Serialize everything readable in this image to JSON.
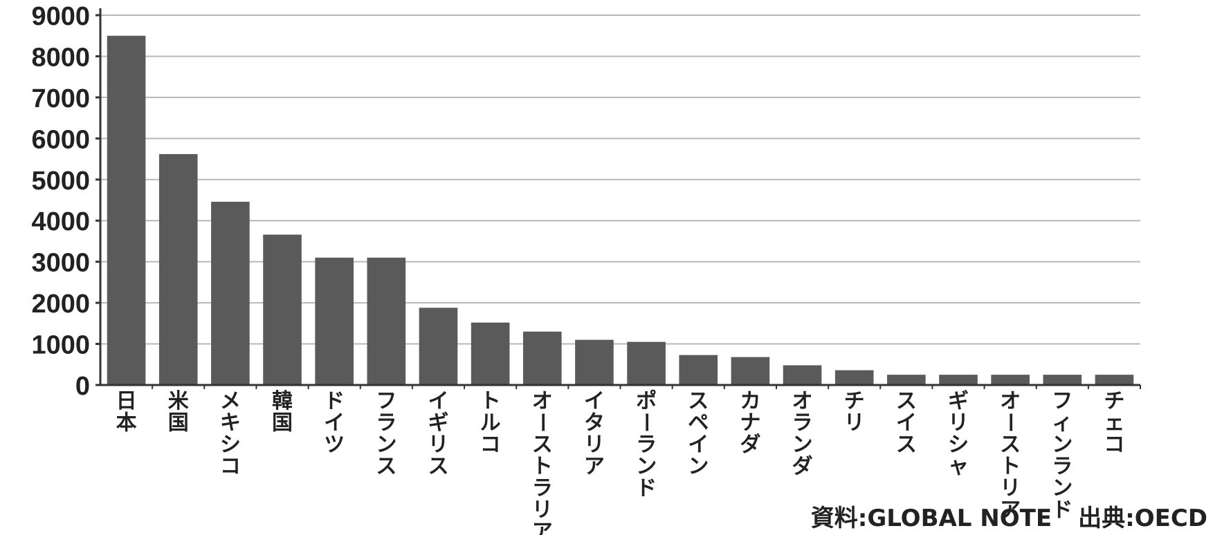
{
  "source": {
    "material": "資料:GLOBAL NOTE",
    "origin": "出典:OECD"
  },
  "chart_data": {
    "type": "bar",
    "title": "",
    "xlabel": "",
    "ylabel": "",
    "ylim": [
      0,
      9000
    ],
    "yticks": [
      0,
      1000,
      2000,
      3000,
      4000,
      5000,
      6000,
      7000,
      8000,
      9000
    ],
    "grid": true,
    "bar_color": "#5a5a5a",
    "categories": [
      "日本",
      "米国",
      "メキシコ",
      "韓国",
      "ドイツ",
      "フランス",
      "イギリス",
      "トルコ",
      "オーストラリア",
      "イタリア",
      "ポーランド",
      "スペイン",
      "カナダ",
      "オランダ",
      "チリ",
      "スイス",
      "ギリシャ",
      "オーストリア",
      "フィンランド",
      "チェコ"
    ],
    "values": [
      8500,
      5620,
      4460,
      3660,
      3100,
      3100,
      1880,
      1520,
      1300,
      1100,
      1050,
      730,
      680,
      480,
      360,
      250,
      250,
      250,
      250,
      250
    ]
  }
}
